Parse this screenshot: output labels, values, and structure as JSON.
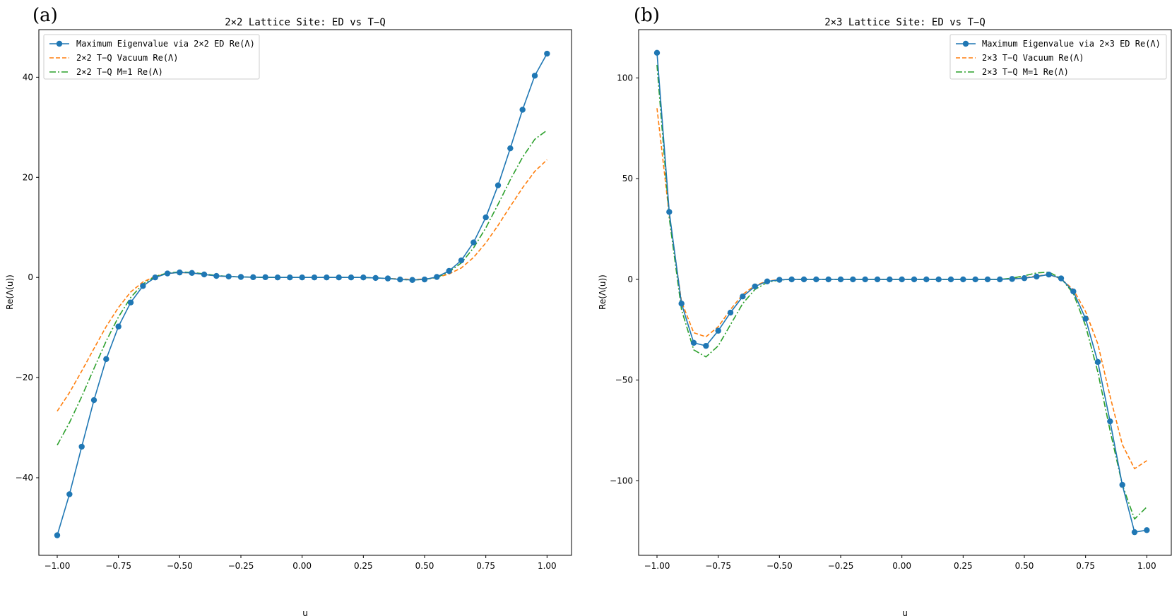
{
  "chart_data": [
    {
      "panel_label": "(a)",
      "type": "line",
      "title": "2×2 Lattice Site: ED vs T−Q",
      "xlabel": "u",
      "ylabel": "Re(Λ(u))",
      "xlim": [
        -1.075,
        1.1
      ],
      "ylim": [
        -55.5,
        49.5
      ],
      "xticks": [
        -1.0,
        -0.75,
        -0.5,
        -0.25,
        0.0,
        0.25,
        0.5,
        0.75,
        1.0
      ],
      "xtick_labels": [
        "−1.00",
        "−0.75",
        "−0.50",
        "−0.25",
        "0.00",
        "0.25",
        "0.50",
        "0.75",
        "1.00"
      ],
      "yticks": [
        -40,
        -20,
        0,
        20,
        40
      ],
      "ytick_labels": [
        "−40",
        "−20",
        "0",
        "20",
        "40"
      ],
      "legend_position": "upper left",
      "series": [
        {
          "name": "Maximum Eigenvalue via 2×2 ED Re(Λ)",
          "color": "#1f77b4",
          "style": "solid",
          "marker": "circle",
          "x": [
            -1.0,
            -0.95,
            -0.9,
            -0.85,
            -0.8,
            -0.75,
            -0.7,
            -0.65,
            -0.6,
            -0.55,
            -0.5,
            -0.45,
            -0.4,
            -0.35,
            -0.3,
            -0.25,
            -0.2,
            -0.15,
            -0.1,
            -0.05,
            0.0,
            0.05,
            0.1,
            0.15,
            0.2,
            0.25,
            0.3,
            0.35,
            0.4,
            0.45,
            0.5,
            0.55,
            0.6,
            0.65,
            0.7,
            0.75,
            0.8,
            0.85,
            0.9,
            0.95,
            1.0
          ],
          "y": [
            -51.5,
            -43.3,
            -33.8,
            -24.5,
            -16.3,
            -9.8,
            -5.0,
            -1.7,
            0.0,
            0.8,
            1.0,
            0.9,
            0.6,
            0.3,
            0.2,
            0.1,
            0.05,
            0.05,
            0.0,
            0.0,
            0.0,
            0.0,
            0.0,
            0.0,
            0.0,
            0.0,
            -0.1,
            -0.2,
            -0.4,
            -0.5,
            -0.4,
            0.1,
            1.3,
            3.4,
            7.0,
            12.0,
            18.4,
            25.8,
            33.5,
            40.3,
            44.7
          ]
        },
        {
          "name": "2×2 T−Q Vacuum Re(Λ)",
          "color": "#ff7f0e",
          "style": "dashed",
          "marker": "none",
          "x": [
            -1.0,
            -0.95,
            -0.9,
            -0.85,
            -0.8,
            -0.75,
            -0.7,
            -0.65,
            -0.6,
            -0.55,
            -0.5,
            -0.45,
            -0.4,
            -0.35,
            -0.3,
            -0.25,
            -0.2,
            -0.15,
            -0.1,
            -0.05,
            0.0,
            0.05,
            0.1,
            0.15,
            0.2,
            0.25,
            0.3,
            0.35,
            0.4,
            0.45,
            0.5,
            0.55,
            0.6,
            0.65,
            0.7,
            0.75,
            0.8,
            0.85,
            0.9,
            0.95,
            1.0
          ],
          "y": [
            -26.7,
            -23.0,
            -18.7,
            -14.2,
            -9.8,
            -6.0,
            -2.9,
            -0.9,
            0.2,
            0.8,
            1.0,
            0.9,
            0.6,
            0.3,
            0.2,
            0.1,
            0.05,
            0.0,
            0.0,
            0.0,
            0.0,
            0.0,
            0.0,
            0.0,
            0.0,
            0.0,
            -0.1,
            -0.2,
            -0.3,
            -0.4,
            -0.3,
            0.0,
            0.7,
            1.9,
            4.0,
            6.9,
            10.4,
            14.2,
            17.9,
            21.2,
            23.5
          ]
        },
        {
          "name": "2×2 T−Q M=1 Re(Λ)",
          "color": "#2ca02c",
          "style": "dashdot",
          "marker": "none",
          "x": [
            -1.0,
            -0.95,
            -0.9,
            -0.85,
            -0.8,
            -0.75,
            -0.7,
            -0.65,
            -0.6,
            -0.55,
            -0.5,
            -0.45,
            -0.4,
            -0.35,
            -0.3,
            -0.25,
            -0.2,
            -0.15,
            -0.1,
            -0.05,
            0.0,
            0.05,
            0.1,
            0.15,
            0.2,
            0.25,
            0.3,
            0.35,
            0.4,
            0.45,
            0.5,
            0.55,
            0.6,
            0.65,
            0.7,
            0.75,
            0.8,
            0.85,
            0.9,
            0.95,
            1.0
          ],
          "y": [
            -33.5,
            -29.0,
            -23.8,
            -18.2,
            -12.7,
            -7.9,
            -4.0,
            -1.3,
            0.2,
            0.9,
            1.1,
            1.0,
            0.7,
            0.4,
            0.2,
            0.1,
            0.05,
            0.0,
            0.0,
            0.0,
            0.0,
            0.0,
            0.0,
            0.0,
            0.0,
            0.0,
            -0.1,
            -0.2,
            -0.4,
            -0.5,
            -0.4,
            0.0,
            1.1,
            2.9,
            5.9,
            9.9,
            14.6,
            19.5,
            24.0,
            27.6,
            29.4
          ]
        }
      ]
    },
    {
      "panel_label": "(b)",
      "type": "line",
      "title": "2×3 Lattice Site: ED vs T−Q",
      "xlabel": "u",
      "ylabel": "Re(Λ(u))",
      "xlim": [
        -1.075,
        1.1
      ],
      "ylim": [
        -137,
        124
      ],
      "xticks": [
        -1.0,
        -0.75,
        -0.5,
        -0.25,
        0.0,
        0.25,
        0.5,
        0.75,
        1.0
      ],
      "xtick_labels": [
        "−1.00",
        "−0.75",
        "−0.50",
        "−0.25",
        "0.00",
        "0.25",
        "0.50",
        "0.75",
        "1.00"
      ],
      "yticks": [
        -100,
        -50,
        0,
        50,
        100
      ],
      "ytick_labels": [
        "−100",
        "−50",
        "0",
        "50",
        "100"
      ],
      "legend_position": "upper right",
      "series": [
        {
          "name": "Maximum Eigenvalue via 2×3 ED Re(Λ)",
          "color": "#1f77b4",
          "style": "solid",
          "marker": "circle",
          "x": [
            -1.0,
            -0.95,
            -0.9,
            -0.85,
            -0.8,
            -0.75,
            -0.7,
            -0.65,
            -0.6,
            -0.55,
            -0.5,
            -0.45,
            -0.4,
            -0.35,
            -0.3,
            -0.25,
            -0.2,
            -0.15,
            -0.1,
            -0.05,
            0.0,
            0.05,
            0.1,
            0.15,
            0.2,
            0.25,
            0.3,
            0.35,
            0.4,
            0.45,
            0.5,
            0.55,
            0.6,
            0.65,
            0.7,
            0.75,
            0.8,
            0.85,
            0.9,
            0.95,
            1.0
          ],
          "y": [
            112.5,
            33.5,
            -12.0,
            -31.5,
            -33.0,
            -25.5,
            -16.5,
            -8.5,
            -3.5,
            -1.0,
            -0.2,
            0.0,
            0.0,
            0.0,
            0.0,
            0.0,
            0.0,
            0.0,
            0.0,
            0.0,
            0.0,
            0.0,
            0.0,
            0.0,
            0.0,
            0.0,
            0.0,
            0.0,
            0.0,
            0.2,
            0.6,
            1.4,
            2.4,
            0.5,
            -6.0,
            -19.5,
            -41.0,
            -70.5,
            -102.0,
            -125.5,
            -124.5
          ]
        },
        {
          "name": "2×3 T−Q Vacuum Re(Λ)",
          "color": "#ff7f0e",
          "style": "dashed",
          "marker": "none",
          "x": [
            -1.0,
            -0.95,
            -0.9,
            -0.85,
            -0.8,
            -0.75,
            -0.7,
            -0.65,
            -0.6,
            -0.55,
            -0.5,
            -0.45,
            -0.4,
            -0.35,
            -0.3,
            -0.25,
            -0.2,
            -0.15,
            -0.1,
            -0.05,
            0.0,
            0.05,
            0.1,
            0.15,
            0.2,
            0.25,
            0.3,
            0.35,
            0.4,
            0.45,
            0.5,
            0.55,
            0.6,
            0.65,
            0.7,
            0.75,
            0.8,
            0.85,
            0.9,
            0.95,
            1.0
          ],
          "y": [
            85.0,
            32.0,
            -11.0,
            -26.5,
            -28.5,
            -23.5,
            -15.0,
            -7.5,
            -3.0,
            -0.8,
            -0.1,
            0.0,
            0.0,
            0.0,
            0.0,
            0.0,
            0.0,
            0.0,
            0.0,
            0.0,
            0.0,
            0.0,
            0.0,
            0.0,
            0.0,
            0.0,
            0.0,
            0.0,
            0.0,
            0.3,
            0.8,
            1.6,
            2.5,
            0.2,
            -5.0,
            -16.0,
            -32.0,
            -58.0,
            -82.0,
            -94.0,
            -90.0
          ]
        },
        {
          "name": "2×3 T−Q M=1 Re(Λ)",
          "color": "#2ca02c",
          "style": "dashdot",
          "marker": "none",
          "x": [
            -1.0,
            -0.95,
            -0.9,
            -0.85,
            -0.8,
            -0.75,
            -0.7,
            -0.65,
            -0.6,
            -0.55,
            -0.5,
            -0.45,
            -0.4,
            -0.35,
            -0.3,
            -0.25,
            -0.2,
            -0.15,
            -0.1,
            -0.05,
            0.0,
            0.05,
            0.1,
            0.15,
            0.2,
            0.25,
            0.3,
            0.35,
            0.4,
            0.45,
            0.5,
            0.55,
            0.6,
            0.65,
            0.7,
            0.75,
            0.8,
            0.85,
            0.9,
            0.95,
            1.0
          ],
          "y": [
            106.5,
            30.5,
            -15.0,
            -35.0,
            -38.5,
            -33.0,
            -22.5,
            -12.0,
            -5.0,
            -1.5,
            -0.3,
            0.0,
            0.0,
            0.0,
            0.0,
            0.0,
            0.0,
            0.0,
            0.0,
            0.0,
            0.0,
            0.0,
            0.0,
            0.0,
            0.0,
            0.0,
            0.0,
            0.0,
            0.0,
            0.6,
            1.8,
            3.2,
            3.6,
            0.5,
            -7.0,
            -23.0,
            -46.0,
            -75.0,
            -102.0,
            -119.0,
            -113.0
          ]
        }
      ]
    }
  ]
}
